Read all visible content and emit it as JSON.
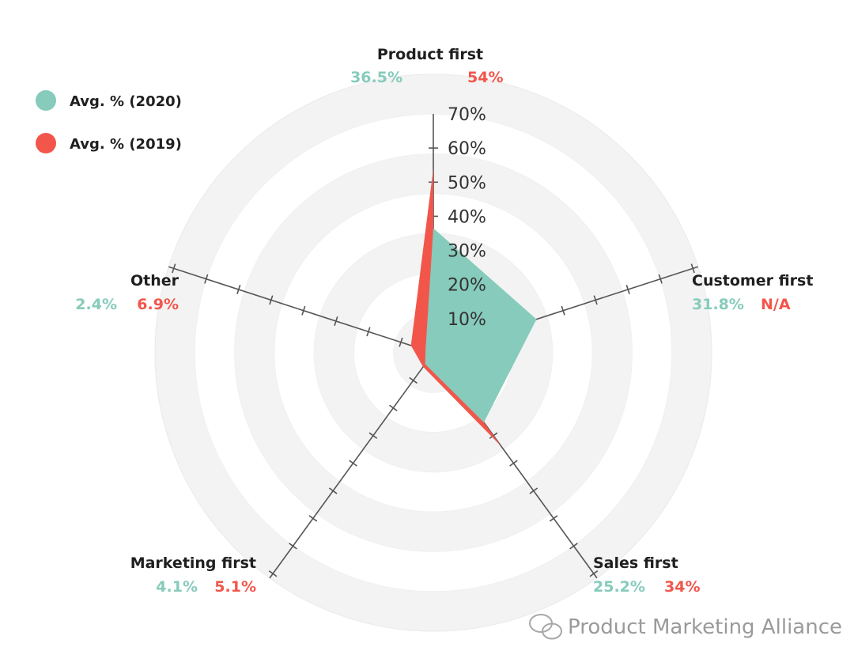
{
  "colors": {
    "series_2020": "#86cbbb",
    "series_2019": "#f2564b",
    "axis": "#555555",
    "ring": "#f3f3f3",
    "watermark": "#9a9a9a"
  },
  "legend": [
    {
      "label": "Avg. % (2020)",
      "color": "#86cbbb"
    },
    {
      "label": "Avg. % (2019)",
      "color": "#f2564b"
    }
  ],
  "watermark": "Product Marketing Alliance",
  "chart_data": {
    "type": "radar",
    "categories": [
      "Product first",
      "Customer first",
      "Sales first",
      "Marketing first",
      "Other"
    ],
    "value_labels": [
      {
        "v2020": "36.5%",
        "v2019": "54%"
      },
      {
        "v2020": "31.8%",
        "v2019": "N/A"
      },
      {
        "v2020": "25.2%",
        "v2019": "34%"
      },
      {
        "v2020": "4.1%",
        "v2019": "5.1%"
      },
      {
        "v2020": "2.4%",
        "v2019": "6.9%"
      }
    ],
    "series": [
      {
        "name": "Avg. % (2020)",
        "values": [
          36.5,
          31.8,
          25.2,
          4.1,
          2.4
        ]
      },
      {
        "name": "Avg. % (2019)",
        "values": [
          54,
          0,
          34,
          5.1,
          6.9
        ]
      }
    ],
    "radial_ticks": [
      "10%",
      "20%",
      "30%",
      "40%",
      "50%",
      "60%",
      "70%"
    ],
    "rmax": 70,
    "legend_position": "top-left",
    "grid": true
  }
}
